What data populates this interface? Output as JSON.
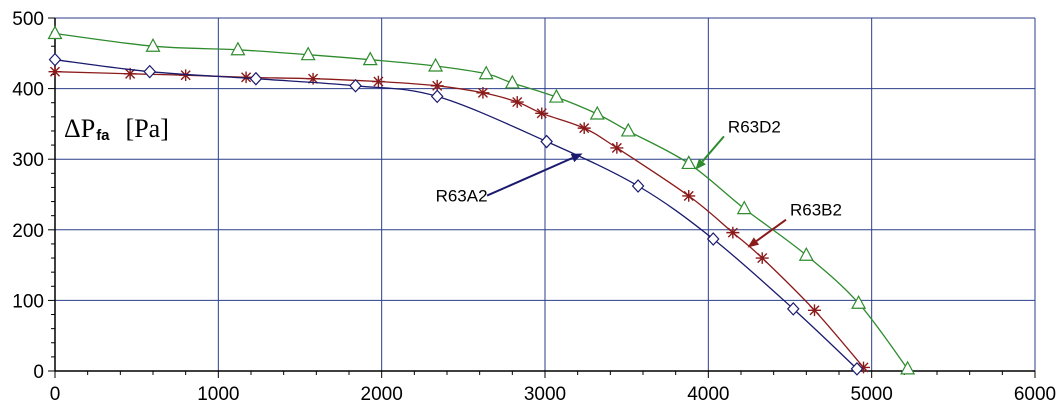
{
  "chart_data": {
    "type": "line",
    "title": "",
    "ylabel": {
      "main": "ΔP",
      "sub": "fa",
      "unit": "[Pa]"
    },
    "xlabel": "",
    "xlim": [
      0,
      6000
    ],
    "ylim": [
      0,
      500
    ],
    "xticks": [
      0,
      1000,
      2000,
      3000,
      4000,
      5000,
      6000
    ],
    "yticks": [
      0,
      100,
      200,
      300,
      400,
      500
    ],
    "grid": true,
    "series": [
      {
        "name": "R63D2",
        "color": "#2e8b2e",
        "marker": "triangle",
        "points": [
          [
            0,
            478
          ],
          [
            600,
            460
          ],
          [
            1120,
            455
          ],
          [
            1550,
            448
          ],
          [
            1930,
            441
          ],
          [
            2330,
            432
          ],
          [
            2640,
            421
          ],
          [
            2800,
            408
          ],
          [
            3070,
            388
          ],
          [
            3320,
            364
          ],
          [
            3510,
            340
          ],
          [
            3880,
            294
          ],
          [
            4220,
            230
          ],
          [
            4600,
            164
          ],
          [
            4920,
            96
          ],
          [
            5220,
            3
          ]
        ]
      },
      {
        "name": "R63B2",
        "color": "#8b1a1a",
        "marker": "asterisk",
        "points": [
          [
            0,
            424
          ],
          [
            460,
            421
          ],
          [
            800,
            419
          ],
          [
            1170,
            416
          ],
          [
            1580,
            414
          ],
          [
            1980,
            410
          ],
          [
            2340,
            404
          ],
          [
            2620,
            394
          ],
          [
            2830,
            381
          ],
          [
            2980,
            365
          ],
          [
            3240,
            344
          ],
          [
            3440,
            316
          ],
          [
            3880,
            248
          ],
          [
            4150,
            196
          ],
          [
            4330,
            160
          ],
          [
            4650,
            86
          ],
          [
            4950,
            5
          ]
        ]
      },
      {
        "name": "R63A2",
        "color": "#1a1a6e",
        "marker": "diamond",
        "points": [
          [
            0,
            441
          ],
          [
            580,
            424
          ],
          [
            1230,
            414
          ],
          [
            1840,
            404
          ],
          [
            2340,
            389
          ],
          [
            3010,
            325
          ],
          [
            3570,
            262
          ],
          [
            4030,
            187
          ],
          [
            4520,
            88
          ],
          [
            4910,
            3
          ]
        ]
      }
    ],
    "annotations": [
      {
        "label": "R63D2",
        "series": "R63D2",
        "text_at": [
          4120,
          338
        ],
        "arrow_to": [
          3920,
          285
        ]
      },
      {
        "label": "R63B2",
        "series": "R63B2",
        "text_at": [
          4500,
          220
        ],
        "arrow_to": [
          4240,
          175
        ]
      },
      {
        "label": "R63A2",
        "series": "R63A2",
        "text_at": [
          2330,
          240
        ],
        "arrow_to": [
          3230,
          308
        ]
      }
    ]
  }
}
